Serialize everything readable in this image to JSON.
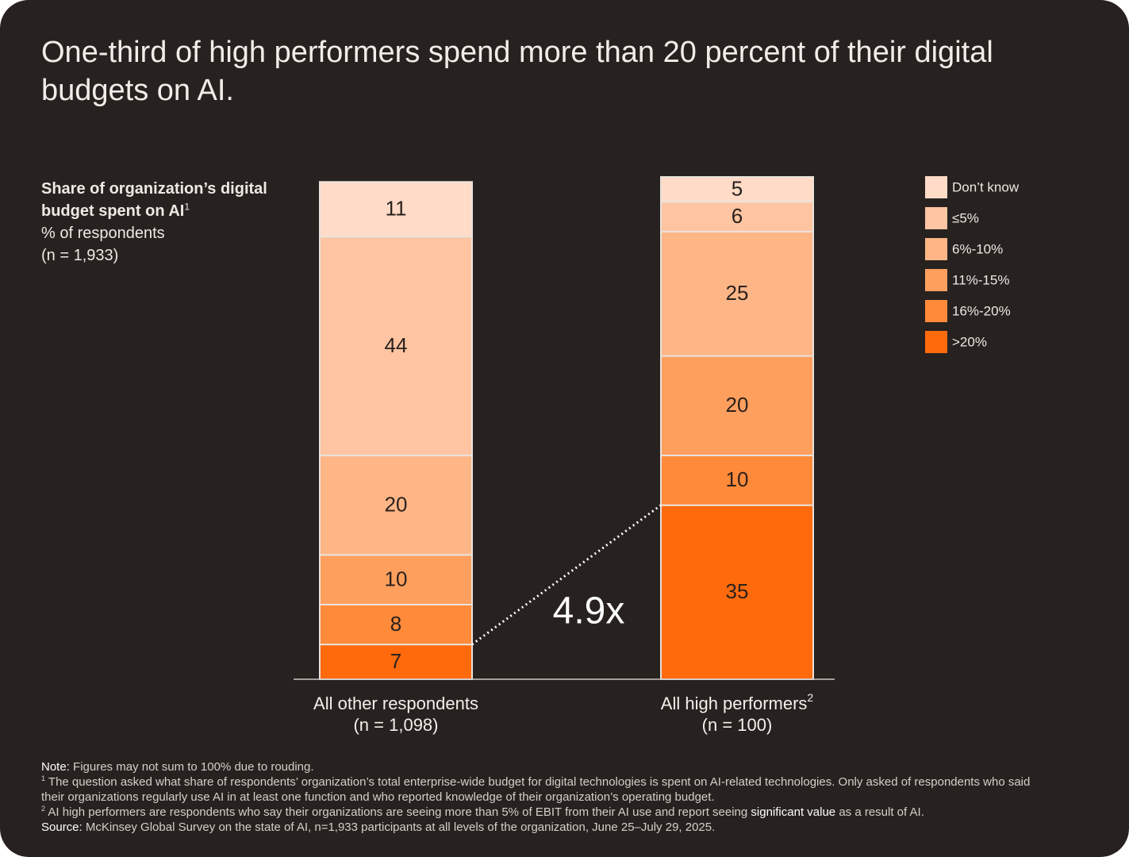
{
  "chart_data": {
    "type": "stacked_bar",
    "title": "One-third of high performers spend more than 20 percent of their digital budgets on AI.",
    "ylabel": "Share of organization’s digital budget spent on AI",
    "ylabel_marker": "1",
    "ylabel_unit": "% of respondents",
    "ylabel_n": "(n = 1,933)",
    "categories": [
      "All other respondents",
      "All high performers"
    ],
    "category_markers": {
      "1": "2"
    },
    "category_notes": [
      "(n = 1,098)",
      "(n = 100)"
    ],
    "series": [
      {
        "name": ">20%",
        "color": "#ff6a0d",
        "values": [
          7,
          35
        ]
      },
      {
        "name": "16%-20%",
        "color": "#ff8a3a",
        "values": [
          8,
          10
        ]
      },
      {
        "name": "11%-15%",
        "color": "#ff9f5e",
        "values": [
          10,
          20
        ]
      },
      {
        "name": "6%-10%",
        "color": "#ffb687",
        "values": [
          20,
          25
        ]
      },
      {
        "name": "≤5%",
        "color": "#ffc4a1",
        "values": [
          44,
          6
        ]
      },
      {
        "name": "Don’t know",
        "color": "#ffdbc8",
        "values": [
          11,
          5
        ]
      }
    ],
    "legend_position": "right",
    "annotation": {
      "text": "4.9x",
      "series": 0
    },
    "notes": [
      {
        "label": "Note:",
        "text": "Figures may not sum to 100% due to rouding."
      },
      {
        "marker": "1",
        "text": "The question asked what share of respondents’ organization’s total enterprise-wide budget for digital technologies is spent on AI-related technologies. Only asked of respondents who said their organizations regularly use AI in at least one function and who reported knowledge of their organization’s operating budget."
      },
      {
        "marker": "2",
        "text": "AI high performers are respondents who say their organizations are seeing more than 5% of EBIT from their AI use and report seeing",
        "emphasis": "significant value",
        "text_after": "as a result of AI."
      },
      {
        "label": "Source:",
        "text": "McKinsey Global Survey on the state of AI, n=1,933 participants at all levels of the organization, June 25–July 29, 2025."
      }
    ]
  }
}
